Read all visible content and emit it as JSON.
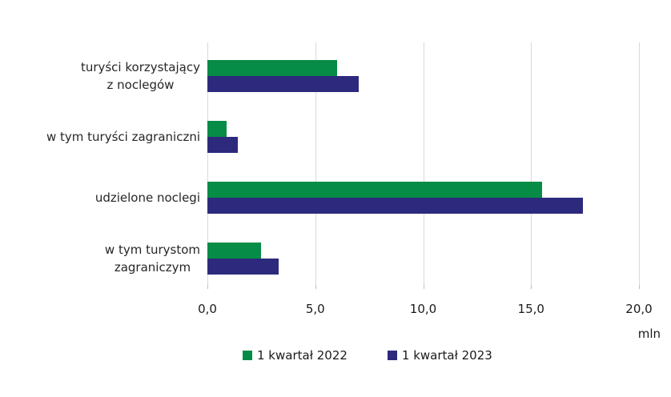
{
  "chart_data": {
    "type": "bar",
    "orientation": "horizontal",
    "categories": [
      [
        "turyści korzystający",
        "z noclegów"
      ],
      [
        "w tym turyści zagraniczni"
      ],
      [
        "udzielone noclegi"
      ],
      [
        "w tym turystom",
        "zagraniczym"
      ]
    ],
    "series": [
      {
        "name": "1 kwartał 2022",
        "color": "#068C46",
        "values": [
          6.0,
          0.9,
          15.5,
          2.5
        ]
      },
      {
        "name": "1 kwartał 2023",
        "color": "#2D2A7D",
        "values": [
          7.0,
          1.4,
          17.4,
          3.3
        ]
      }
    ],
    "xlim": [
      0,
      20
    ],
    "xticks": [
      {
        "value": 0,
        "label": "0,0"
      },
      {
        "value": 5,
        "label": "5,0"
      },
      {
        "value": 10,
        "label": "10,0"
      },
      {
        "value": 15,
        "label": "15,0"
      },
      {
        "value": 20,
        "label": "20,0"
      }
    ],
    "unit_label": "mln",
    "grid": "vertical",
    "legend_position": "bottom"
  },
  "colors": {
    "background": "#FFFFFF",
    "gridline": "#D9D9D9",
    "category_text": "#262626",
    "tick_text": "#1A1A1A"
  }
}
